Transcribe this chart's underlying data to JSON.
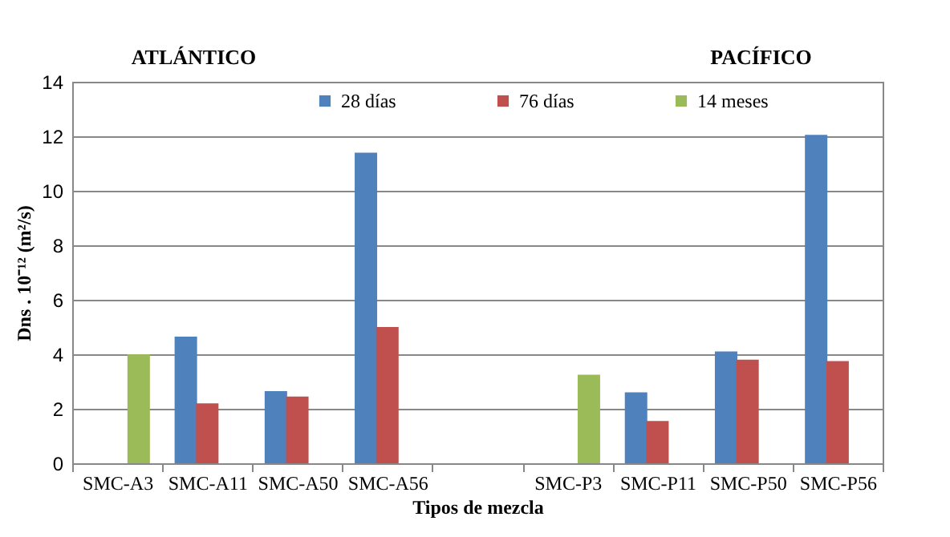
{
  "chart_data": {
    "type": "bar",
    "xlabel": "Tipos de mezcla",
    "ylabel": "Dns . 10⁻¹² (m²/s)",
    "categories": [
      "SMC-A3",
      "SMC-A11",
      "SMC-A50",
      "SMC-A56",
      null,
      "SMC-P3",
      "SMC-P11",
      "SMC-P50",
      "SMC-P56"
    ],
    "series": [
      {
        "name": "28 días",
        "color": "#4f81bd",
        "values": [
          null,
          4.65,
          2.65,
          11.4,
          null,
          null,
          2.6,
          4.1,
          12.05
        ]
      },
      {
        "name": "76 días",
        "color": "#c0504d",
        "values": [
          null,
          2.2,
          2.45,
          5.0,
          null,
          null,
          1.55,
          3.8,
          3.75
        ]
      },
      {
        "name": "14 meses",
        "color": "#9bbb59",
        "values": [
          4.0,
          null,
          null,
          null,
          null,
          3.25,
          null,
          null,
          null
        ]
      }
    ],
    "annotations": [
      "ATLÁNTICO",
      "PACÍFICO"
    ],
    "ylim": [
      0,
      14
    ],
    "yticks": [
      0,
      2,
      4,
      6,
      8,
      10,
      12,
      14
    ],
    "grid": "y",
    "legend": "top"
  }
}
